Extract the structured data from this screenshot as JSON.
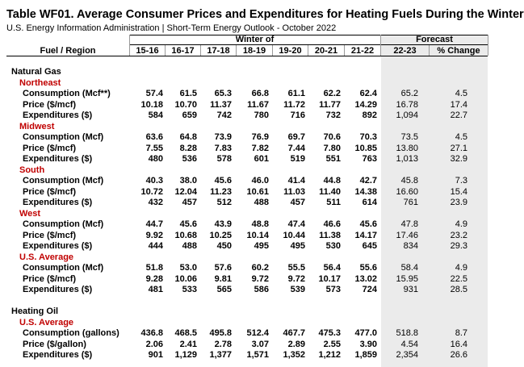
{
  "title": "Table WF01. Average Consumer Prices and Expenditures for Heating Fuels During the Winter",
  "subtitle": "U.S. Energy Information Administration  |  Short-Term Energy Outlook - October 2022",
  "header": {
    "winter_of": "Winter of",
    "forecast": "Forecast",
    "fuel_region": "Fuel / Region",
    "columns": [
      "15-16",
      "16-17",
      "17-18",
      "18-19",
      "19-20",
      "20-21",
      "21-22",
      "22-23",
      "% Change"
    ]
  },
  "rows": [
    {
      "label": "Natural Gas",
      "level": 0,
      "values": []
    },
    {
      "label": "Northeast",
      "level": 1,
      "values": []
    },
    {
      "label": "Consumption (Mcf**)",
      "level": 2,
      "values": [
        "57.4",
        "61.5",
        "65.3",
        "66.8",
        "61.1",
        "62.2",
        "62.4",
        "65.2",
        "4.5"
      ]
    },
    {
      "label": "Price ($/mcf)",
      "level": 2,
      "values": [
        "10.18",
        "10.70",
        "11.37",
        "11.67",
        "11.72",
        "11.77",
        "14.29",
        "16.78",
        "17.4"
      ]
    },
    {
      "label": "Expenditures ($)",
      "level": 2,
      "values": [
        "584",
        "659",
        "742",
        "780",
        "716",
        "732",
        "892",
        "1,094",
        "22.7"
      ]
    },
    {
      "label": "Midwest",
      "level": 1,
      "values": []
    },
    {
      "label": "Consumption (Mcf)",
      "level": 2,
      "values": [
        "63.6",
        "64.8",
        "73.9",
        "76.9",
        "69.7",
        "70.6",
        "70.3",
        "73.5",
        "4.5"
      ]
    },
    {
      "label": "Price ($/mcf)",
      "level": 2,
      "values": [
        "7.55",
        "8.28",
        "7.83",
        "7.82",
        "7.44",
        "7.80",
        "10.85",
        "13.80",
        "27.1"
      ]
    },
    {
      "label": "Expenditures ($)",
      "level": 2,
      "values": [
        "480",
        "536",
        "578",
        "601",
        "519",
        "551",
        "763",
        "1,013",
        "32.9"
      ]
    },
    {
      "label": "South",
      "level": 1,
      "values": []
    },
    {
      "label": "Consumption (Mcf)",
      "level": 2,
      "values": [
        "40.3",
        "38.0",
        "45.6",
        "46.0",
        "41.4",
        "44.8",
        "42.7",
        "45.8",
        "7.3"
      ]
    },
    {
      "label": "Price ($/mcf)",
      "level": 2,
      "values": [
        "10.72",
        "12.04",
        "11.23",
        "10.61",
        "11.03",
        "11.40",
        "14.38",
        "16.60",
        "15.4"
      ]
    },
    {
      "label": "Expenditures ($)",
      "level": 2,
      "values": [
        "432",
        "457",
        "512",
        "488",
        "457",
        "511",
        "614",
        "761",
        "23.9"
      ]
    },
    {
      "label": "West",
      "level": 1,
      "values": []
    },
    {
      "label": "Consumption (Mcf)",
      "level": 2,
      "values": [
        "44.7",
        "45.6",
        "43.9",
        "48.8",
        "47.4",
        "46.6",
        "45.6",
        "47.8",
        "4.9"
      ]
    },
    {
      "label": "Price ($/mcf)",
      "level": 2,
      "values": [
        "9.92",
        "10.68",
        "10.25",
        "10.14",
        "10.44",
        "11.38",
        "14.17",
        "17.46",
        "23.2"
      ]
    },
    {
      "label": "Expenditures ($)",
      "level": 2,
      "values": [
        "444",
        "488",
        "450",
        "495",
        "495",
        "530",
        "645",
        "834",
        "29.3"
      ]
    },
    {
      "label": "U.S. Average",
      "level": 1,
      "values": []
    },
    {
      "label": "Consumption (Mcf)",
      "level": 2,
      "values": [
        "51.8",
        "53.0",
        "57.6",
        "60.2",
        "55.5",
        "56.4",
        "55.6",
        "58.4",
        "4.9"
      ]
    },
    {
      "label": "Price ($/mcf)",
      "level": 2,
      "values": [
        "9.28",
        "10.06",
        "9.81",
        "9.72",
        "9.72",
        "10.17",
        "13.02",
        "15.95",
        "22.5"
      ]
    },
    {
      "label": "Expenditures ($)",
      "level": 2,
      "values": [
        "481",
        "533",
        "565",
        "586",
        "539",
        "573",
        "724",
        "931",
        "28.5"
      ]
    },
    {
      "label": "Heating Oil",
      "level": 0,
      "values": []
    },
    {
      "label": "U.S. Average",
      "level": 1,
      "values": []
    },
    {
      "label": "Consumption (gallons)",
      "level": 2,
      "values": [
        "436.8",
        "468.5",
        "495.8",
        "512.4",
        "467.7",
        "475.3",
        "477.0",
        "518.8",
        "8.7"
      ]
    },
    {
      "label": "Price ($/gallon)",
      "level": 2,
      "values": [
        "2.06",
        "2.41",
        "2.78",
        "3.07",
        "2.89",
        "2.55",
        "3.90",
        "4.54",
        "16.4"
      ]
    },
    {
      "label": "Expenditures ($)",
      "level": 2,
      "values": [
        "901",
        "1,129",
        "1,377",
        "1,571",
        "1,352",
        "1,212",
        "1,859",
        "2,354",
        "26.6"
      ]
    }
  ]
}
